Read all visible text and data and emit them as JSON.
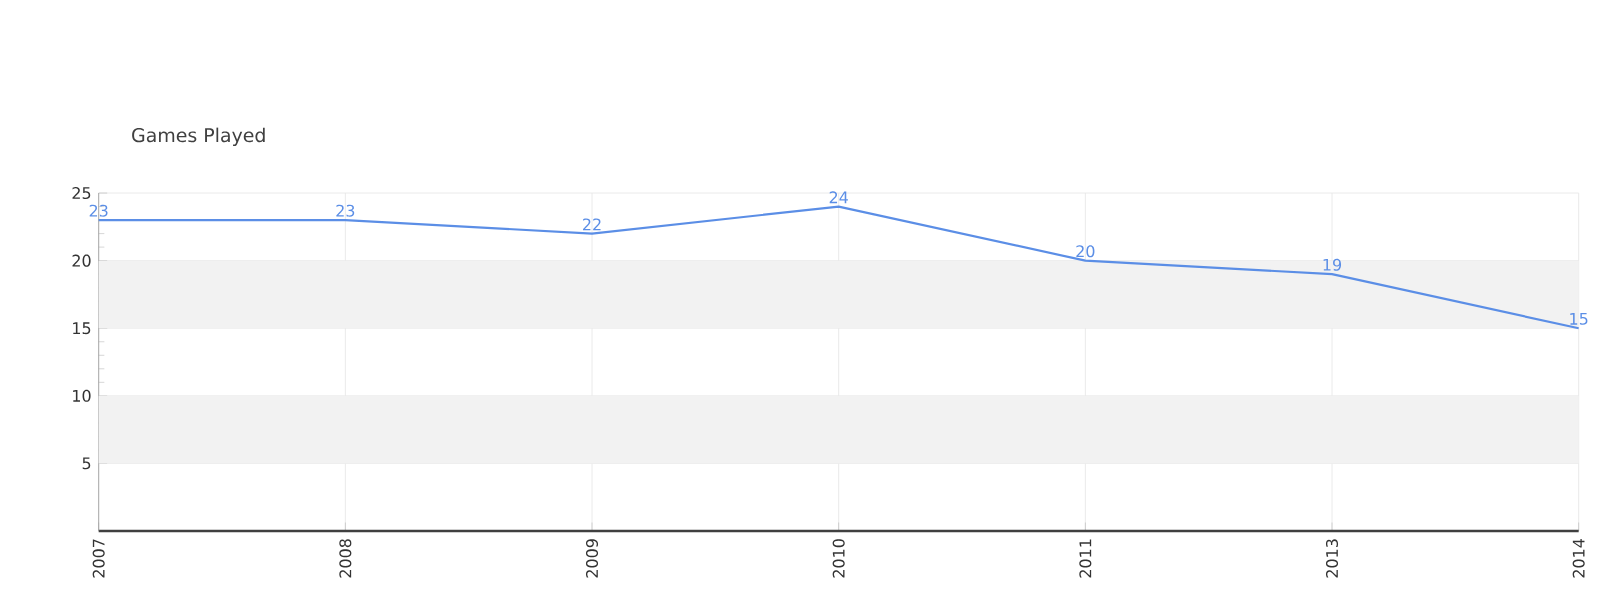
{
  "chart_data": {
    "type": "line",
    "title": "Games Played",
    "categories": [
      "2007",
      "2008",
      "2009",
      "2010",
      "2011",
      "2013",
      "2014"
    ],
    "series": [
      {
        "color": "#5b8ee6",
        "values": [
          23,
          23,
          22,
          24,
          20,
          19,
          15
        ]
      }
    ],
    "ylim": [
      0,
      25
    ],
    "yticks": [
      5,
      10,
      15,
      20,
      25
    ],
    "grid": true,
    "data_labels": true,
    "marker": "none"
  }
}
